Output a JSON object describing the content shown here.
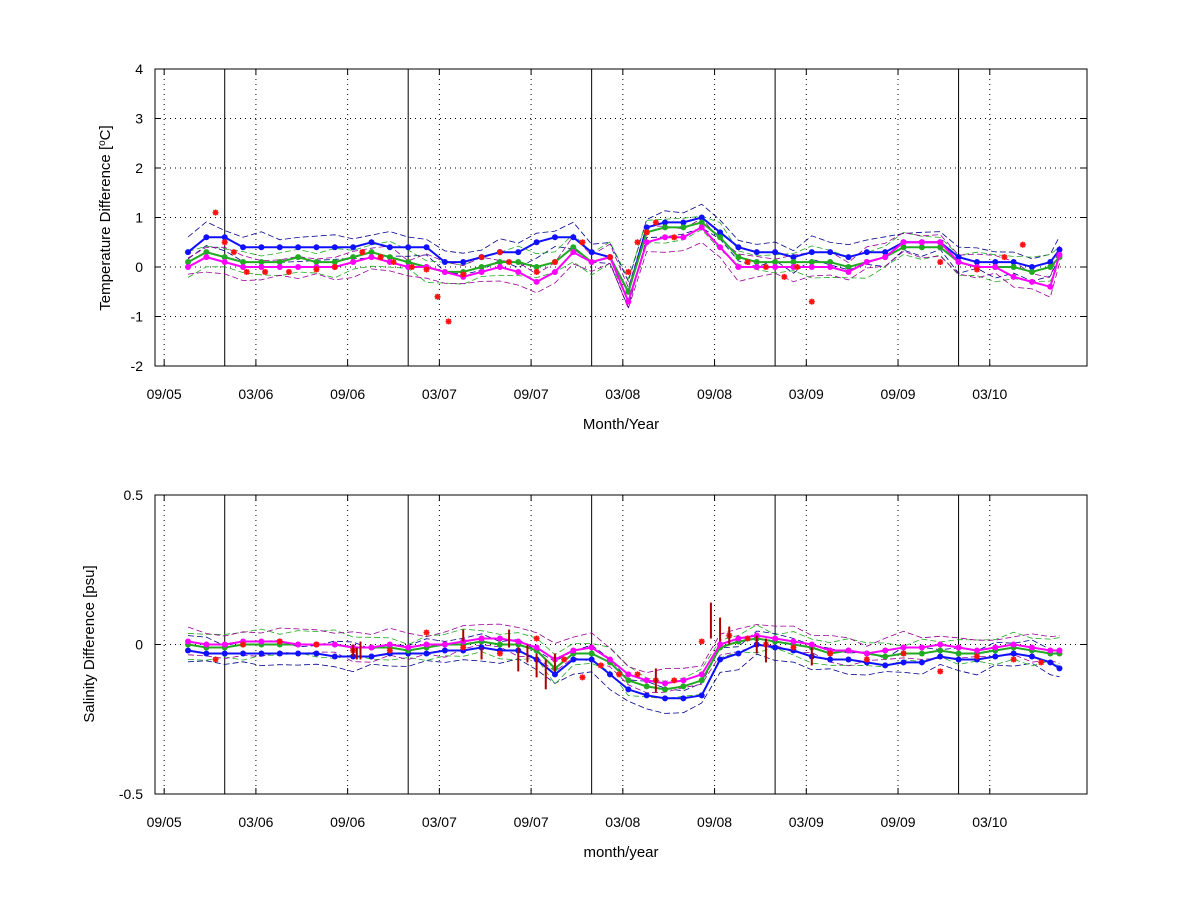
{
  "colors": {
    "blue": "#1010ff",
    "green": "#22aa22",
    "magenta": "#ff00ff",
    "red": "#ff1010",
    "darkred": "#aa0000",
    "navy": "#00008b",
    "purple": "#990099",
    "grid": "#000000"
  },
  "chart_data": [
    {
      "type": "line",
      "xlabel": "Month/Year",
      "ylabel": "Temperature Difference [",
      "ylabel_unit_sup": "o",
      "ylabel_unit_tail": "C]",
      "ylim": [
        -2,
        4
      ],
      "yticks": [
        "4",
        "3",
        "2",
        "1",
        "0",
        "-1",
        "-2"
      ],
      "xlim": [
        2005.62,
        2010.7
      ],
      "xticks": [
        "09/05",
        "03/06",
        "09/06",
        "03/07",
        "09/07",
        "03/08",
        "09/08",
        "03/09",
        "09/09",
        "03/10"
      ],
      "xtick_values": [
        2005.67,
        2006.17,
        2006.67,
        2007.17,
        2007.67,
        2008.17,
        2008.67,
        2009.17,
        2009.67,
        2010.17
      ],
      "year_boundaries": [
        2006.0,
        2007.0,
        2008.0,
        2009.0,
        2010.0
      ],
      "grid": true,
      "series": [
        {
          "color": "blue",
          "marker": "dot",
          "x": [
            2005.8,
            2005.9,
            2006.0,
            2006.1,
            2006.2,
            2006.3,
            2006.4,
            2006.5,
            2006.6,
            2006.7,
            2006.8,
            2006.9,
            2007.0,
            2007.1,
            2007.2,
            2007.3,
            2007.4,
            2007.5,
            2007.6,
            2007.7,
            2007.8,
            2007.9,
            2008.0,
            2008.1,
            2008.2,
            2008.3,
            2008.4,
            2008.5,
            2008.6,
            2008.7,
            2008.8,
            2008.9,
            2009.0,
            2009.1,
            2009.2,
            2009.3,
            2009.4,
            2009.5,
            2009.6,
            2009.7,
            2009.8,
            2009.9,
            2010.0,
            2010.1,
            2010.2,
            2010.3,
            2010.4,
            2010.5,
            2010.55
          ],
          "y": [
            0.3,
            0.6,
            0.6,
            0.4,
            0.4,
            0.4,
            0.4,
            0.4,
            0.4,
            0.4,
            0.5,
            0.4,
            0.4,
            0.4,
            0.1,
            0.1,
            0.2,
            0.3,
            0.3,
            0.5,
            0.6,
            0.6,
            0.3,
            0.2,
            -0.5,
            0.8,
            0.9,
            0.9,
            1.0,
            0.7,
            0.4,
            0.3,
            0.3,
            0.2,
            0.3,
            0.3,
            0.2,
            0.3,
            0.3,
            0.5,
            0.5,
            0.5,
            0.2,
            0.1,
            0.1,
            0.1,
            0.0,
            0.1,
            0.35
          ]
        },
        {
          "color": "green",
          "marker": "dot",
          "x": [
            2005.8,
            2005.9,
            2006.0,
            2006.1,
            2006.2,
            2006.3,
            2006.4,
            2006.5,
            2006.6,
            2006.7,
            2006.8,
            2006.9,
            2007.0,
            2007.1,
            2007.2,
            2007.3,
            2007.4,
            2007.5,
            2007.6,
            2007.7,
            2007.8,
            2007.9,
            2008.0,
            2008.1,
            2008.2,
            2008.3,
            2008.4,
            2008.5,
            2008.6,
            2008.7,
            2008.8,
            2008.9,
            2009.0,
            2009.1,
            2009.2,
            2009.3,
            2009.4,
            2009.5,
            2009.6,
            2009.7,
            2009.8,
            2009.9,
            2010.0,
            2010.1,
            2010.2,
            2010.3,
            2010.4,
            2010.5,
            2010.55
          ],
          "y": [
            0.1,
            0.3,
            0.2,
            0.1,
            0.1,
            0.1,
            0.2,
            0.1,
            0.1,
            0.2,
            0.3,
            0.2,
            0.1,
            0.0,
            -0.1,
            -0.1,
            0.0,
            0.1,
            0.1,
            0.0,
            0.1,
            0.4,
            0.1,
            0.2,
            -0.5,
            0.7,
            0.8,
            0.8,
            0.9,
            0.6,
            0.2,
            0.1,
            0.1,
            0.1,
            0.1,
            0.1,
            0.0,
            0.1,
            0.2,
            0.4,
            0.4,
            0.4,
            0.1,
            0.0,
            0.0,
            0.0,
            -0.1,
            0.0,
            0.2
          ]
        },
        {
          "color": "magenta",
          "marker": "dot",
          "x": [
            2005.8,
            2005.9,
            2006.0,
            2006.1,
            2006.2,
            2006.3,
            2006.4,
            2006.5,
            2006.6,
            2006.7,
            2006.8,
            2006.9,
            2007.0,
            2007.1,
            2007.2,
            2007.3,
            2007.4,
            2007.5,
            2007.6,
            2007.7,
            2007.8,
            2007.9,
            2008.0,
            2008.1,
            2008.2,
            2008.3,
            2008.4,
            2008.5,
            2008.6,
            2008.7,
            2008.8,
            2008.9,
            2009.0,
            2009.1,
            2009.2,
            2009.3,
            2009.4,
            2009.5,
            2009.6,
            2009.7,
            2009.8,
            2009.9,
            2010.0,
            2010.1,
            2010.2,
            2010.3,
            2010.4,
            2010.5,
            2010.55
          ],
          "y": [
            0.0,
            0.2,
            0.1,
            0.0,
            0.0,
            0.0,
            0.0,
            0.0,
            0.0,
            0.1,
            0.2,
            0.1,
            0.0,
            0.0,
            -0.1,
            -0.2,
            -0.1,
            0.0,
            -0.1,
            -0.3,
            -0.1,
            0.3,
            0.1,
            0.2,
            -0.7,
            0.5,
            0.6,
            0.6,
            0.8,
            0.4,
            0.0,
            0.0,
            0.0,
            0.0,
            0.0,
            0.0,
            -0.1,
            0.1,
            0.2,
            0.5,
            0.5,
            0.5,
            0.1,
            0.0,
            0.0,
            -0.2,
            -0.3,
            -0.4,
            0.25
          ]
        },
        {
          "color": "red",
          "marker": "star",
          "x": [
            2005.95,
            2006.0,
            2006.05,
            2006.12,
            2006.22,
            2006.35,
            2006.5,
            2006.6,
            2006.75,
            2006.85,
            2006.92,
            2007.02,
            2007.1,
            2007.16,
            2007.22,
            2007.3,
            2007.4,
            2007.5,
            2007.55,
            2007.7,
            2007.8,
            2007.95,
            2008.1,
            2008.2,
            2008.25,
            2008.3,
            2008.35,
            2008.45,
            2008.85,
            2008.95,
            2009.05,
            2009.12,
            2009.2,
            2009.9,
            2010.1,
            2010.25,
            2010.35
          ],
          "y": [
            1.1,
            0.5,
            0.3,
            -0.1,
            -0.1,
            -0.1,
            -0.05,
            0.0,
            0.3,
            0.2,
            0.1,
            0.0,
            -0.05,
            -0.6,
            -1.1,
            -0.15,
            0.2,
            0.3,
            0.1,
            -0.1,
            0.1,
            0.5,
            0.2,
            -0.1,
            0.5,
            0.7,
            0.9,
            0.6,
            0.1,
            0.0,
            -0.2,
            0.0,
            -0.7,
            0.1,
            -0.05,
            0.2,
            0.45
          ]
        }
      ]
    },
    {
      "type": "line",
      "xlabel": "month/year",
      "ylabel": "Salinity Difference [psu]",
      "ylim": [
        -0.5,
        0.5
      ],
      "yticks": [
        "0.5",
        "0",
        "-0.5"
      ],
      "xlim": [
        2005.62,
        2010.7
      ],
      "xticks": [
        "09/05",
        "03/06",
        "09/06",
        "03/07",
        "09/07",
        "03/08",
        "09/08",
        "03/09",
        "09/09",
        "03/10"
      ],
      "xtick_values": [
        2005.67,
        2006.17,
        2006.67,
        2007.17,
        2007.67,
        2008.17,
        2008.67,
        2009.17,
        2009.67,
        2010.17
      ],
      "year_boundaries": [
        2006.0,
        2007.0,
        2008.0,
        2009.0,
        2010.0
      ],
      "grid": true,
      "series": [
        {
          "color": "blue",
          "marker": "dot",
          "x": [
            2005.8,
            2005.9,
            2006.0,
            2006.1,
            2006.2,
            2006.3,
            2006.4,
            2006.5,
            2006.6,
            2006.7,
            2006.8,
            2006.9,
            2007.0,
            2007.1,
            2007.2,
            2007.3,
            2007.4,
            2007.5,
            2007.6,
            2007.7,
            2007.8,
            2007.9,
            2008.0,
            2008.1,
            2008.2,
            2008.3,
            2008.4,
            2008.5,
            2008.6,
            2008.7,
            2008.8,
            2008.9,
            2009.0,
            2009.1,
            2009.2,
            2009.3,
            2009.4,
            2009.5,
            2009.6,
            2009.7,
            2009.8,
            2009.9,
            2010.0,
            2010.1,
            2010.2,
            2010.3,
            2010.4,
            2010.5,
            2010.55
          ],
          "y": [
            -0.02,
            -0.03,
            -0.03,
            -0.03,
            -0.03,
            -0.03,
            -0.03,
            -0.03,
            -0.04,
            -0.04,
            -0.04,
            -0.03,
            -0.03,
            -0.03,
            -0.02,
            -0.02,
            -0.01,
            -0.02,
            -0.02,
            -0.05,
            -0.1,
            -0.05,
            -0.05,
            -0.1,
            -0.15,
            -0.17,
            -0.18,
            -0.18,
            -0.17,
            -0.05,
            -0.03,
            0.0,
            -0.01,
            -0.02,
            -0.04,
            -0.05,
            -0.05,
            -0.06,
            -0.07,
            -0.06,
            -0.06,
            -0.04,
            -0.05,
            -0.05,
            -0.04,
            -0.03,
            -0.04,
            -0.06,
            -0.08
          ]
        },
        {
          "color": "green",
          "marker": "dot",
          "x": [
            2005.8,
            2005.9,
            2006.0,
            2006.1,
            2006.2,
            2006.3,
            2006.4,
            2006.5,
            2006.6,
            2006.7,
            2006.8,
            2006.9,
            2007.0,
            2007.1,
            2007.2,
            2007.3,
            2007.4,
            2007.5,
            2007.6,
            2007.7,
            2007.8,
            2007.9,
            2008.0,
            2008.1,
            2008.2,
            2008.3,
            2008.4,
            2008.5,
            2008.6,
            2008.7,
            2008.8,
            2008.9,
            2009.0,
            2009.1,
            2009.2,
            2009.3,
            2009.4,
            2009.5,
            2009.6,
            2009.7,
            2009.8,
            2009.9,
            2010.0,
            2010.1,
            2010.2,
            2010.3,
            2010.4,
            2010.5,
            2010.55
          ],
          "y": [
            0.0,
            -0.01,
            -0.01,
            0.0,
            0.0,
            0.0,
            0.0,
            0.0,
            0.0,
            -0.01,
            -0.01,
            -0.01,
            -0.02,
            -0.01,
            0.0,
            0.0,
            0.01,
            0.0,
            0.0,
            -0.02,
            -0.08,
            -0.03,
            -0.03,
            -0.06,
            -0.12,
            -0.14,
            -0.15,
            -0.14,
            -0.12,
            -0.01,
            0.01,
            0.02,
            0.01,
            0.0,
            -0.01,
            -0.03,
            -0.02,
            -0.03,
            -0.04,
            -0.03,
            -0.03,
            -0.02,
            -0.03,
            -0.03,
            -0.02,
            -0.01,
            -0.02,
            -0.03,
            -0.03
          ]
        },
        {
          "color": "magenta",
          "marker": "dot",
          "x": [
            2005.8,
            2005.9,
            2006.0,
            2006.1,
            2006.2,
            2006.3,
            2006.4,
            2006.5,
            2006.6,
            2006.7,
            2006.8,
            2006.9,
            2007.0,
            2007.1,
            2007.2,
            2007.3,
            2007.4,
            2007.5,
            2007.6,
            2007.7,
            2007.8,
            2007.9,
            2008.0,
            2008.1,
            2008.2,
            2008.3,
            2008.4,
            2008.5,
            2008.6,
            2008.7,
            2008.8,
            2008.9,
            2009.0,
            2009.1,
            2009.2,
            2009.3,
            2009.4,
            2009.5,
            2009.6,
            2009.7,
            2009.8,
            2009.9,
            2010.0,
            2010.1,
            2010.2,
            2010.3,
            2010.4,
            2010.5,
            2010.55
          ],
          "y": [
            0.01,
            0.0,
            0.0,
            0.01,
            0.01,
            0.01,
            0.0,
            0.0,
            0.0,
            -0.01,
            -0.01,
            0.0,
            -0.01,
            0.0,
            0.0,
            0.01,
            0.02,
            0.02,
            0.01,
            -0.01,
            -0.05,
            -0.02,
            -0.01,
            -0.05,
            -0.1,
            -0.12,
            -0.13,
            -0.12,
            -0.1,
            0.0,
            0.02,
            0.03,
            0.02,
            0.01,
            0.0,
            -0.02,
            -0.02,
            -0.03,
            -0.02,
            -0.01,
            -0.01,
            0.0,
            -0.01,
            -0.02,
            -0.01,
            0.0,
            -0.01,
            -0.02,
            -0.02
          ]
        },
        {
          "color": "red",
          "marker": "star",
          "x": [
            2005.95,
            2006.1,
            2006.3,
            2006.5,
            2006.7,
            2006.9,
            2007.1,
            2007.3,
            2007.5,
            2007.7,
            2007.85,
            2007.95,
            2008.05,
            2008.15,
            2008.25,
            2008.35,
            2008.45,
            2008.6,
            2008.75,
            2008.85,
            2008.95,
            2009.1,
            2009.3,
            2009.5,
            2009.7,
            2009.9,
            2010.1,
            2010.3,
            2010.45
          ],
          "y": [
            -0.05,
            0.0,
            0.01,
            0.0,
            -0.02,
            -0.02,
            0.04,
            -0.01,
            -0.03,
            0.02,
            -0.05,
            -0.11,
            -0.07,
            -0.1,
            -0.1,
            -0.12,
            -0.12,
            0.01,
            0.03,
            0.02,
            0.0,
            -0.01,
            -0.03,
            -0.05,
            -0.03,
            -0.09,
            -0.04,
            -0.05,
            -0.06
          ]
        },
        {
          "color": "darkred",
          "marker": "bar",
          "x": [
            2006.7,
            2006.72,
            2006.74,
            2007.3,
            2007.4,
            2007.55,
            2007.6,
            2007.65,
            2007.7,
            2007.75,
            2007.8,
            2008.35,
            2008.65,
            2008.7,
            2008.75,
            2008.9,
            2008.95,
            2009.2
          ],
          "y": [
            -0.02,
            -0.03,
            -0.02,
            0.03,
            -0.03,
            0.02,
            -0.05,
            -0.03,
            -0.07,
            -0.1,
            -0.06,
            -0.12,
            0.08,
            0.05,
            0.03,
            0.0,
            -0.02,
            -0.04
          ],
          "err": [
            0.02,
            0.02,
            0.03,
            0.02,
            0.02,
            0.03,
            0.04,
            0.03,
            0.04,
            0.05,
            0.03,
            0.04,
            0.06,
            0.04,
            0.03,
            0.03,
            0.04,
            0.03
          ]
        }
      ]
    }
  ]
}
